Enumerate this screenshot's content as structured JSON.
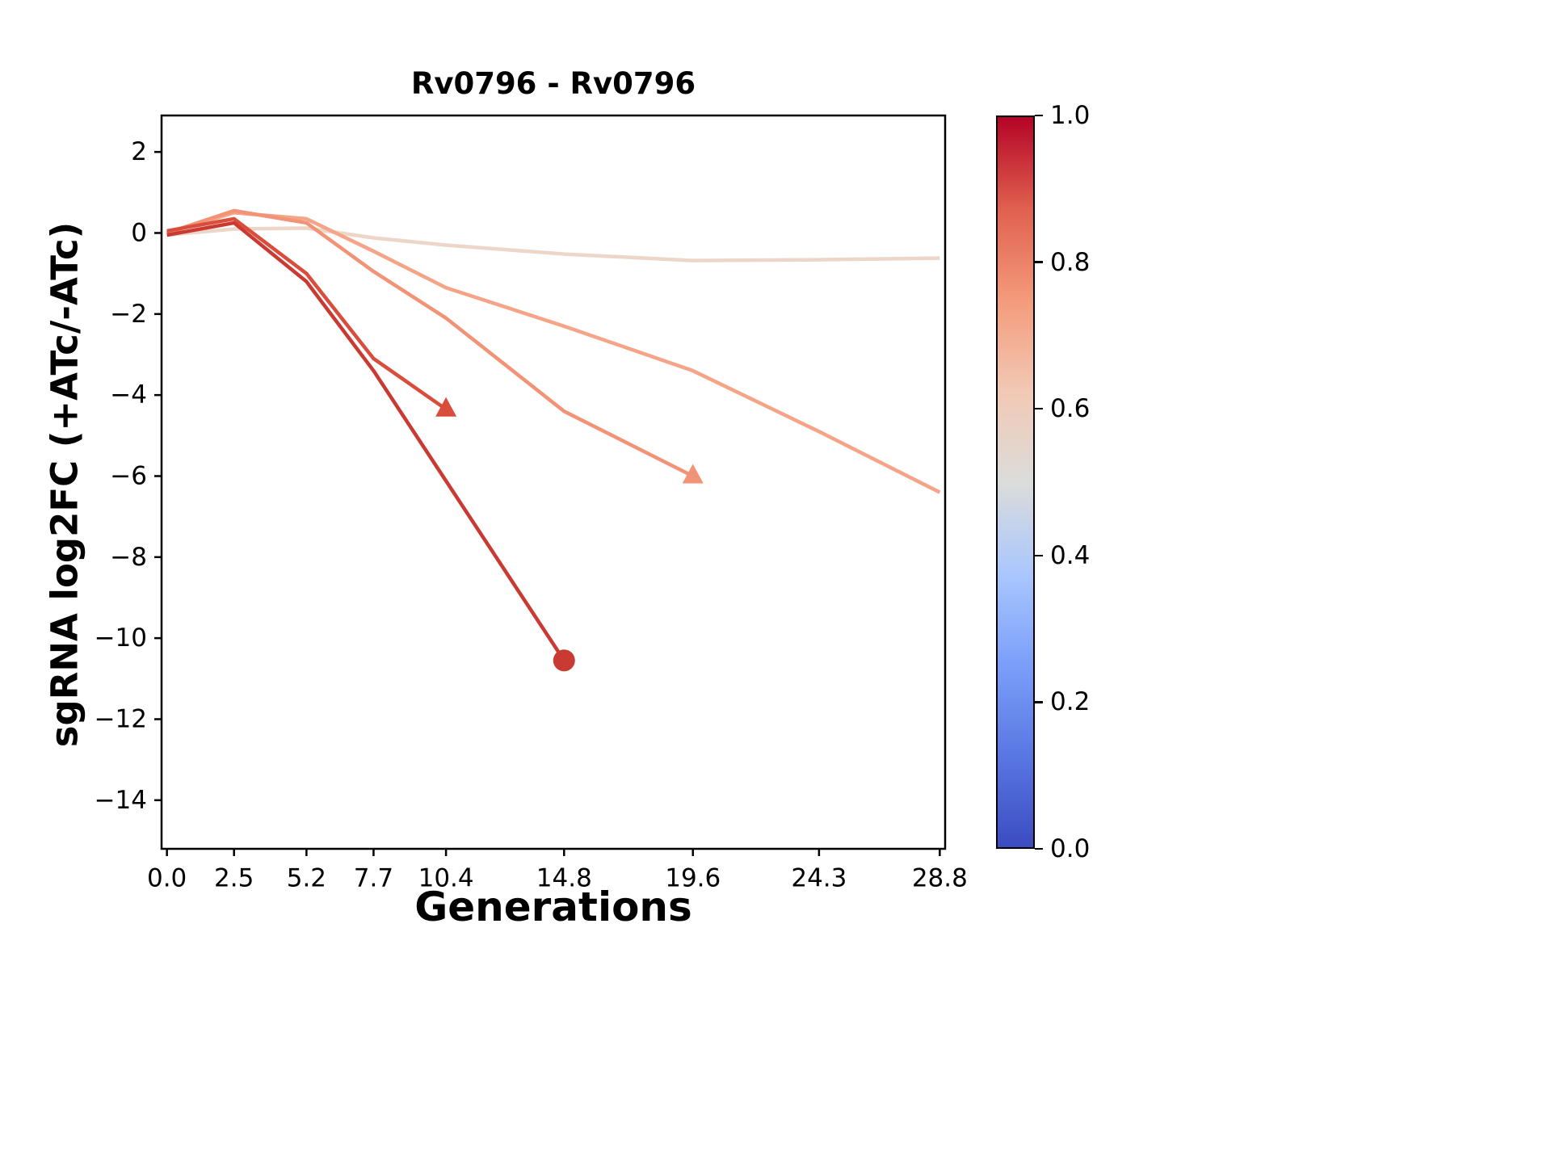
{
  "chart_data": {
    "type": "line",
    "title": "Rv0796 - Rv0796",
    "xlabel": "Generations",
    "ylabel": "sgRNA log2FC (+ATc/-ATc)",
    "xlim": [
      -0.2,
      29.0
    ],
    "ylim": [
      -15.2,
      2.9
    ],
    "grid": false,
    "xticks": [
      0.0,
      2.5,
      5.2,
      7.7,
      10.4,
      14.8,
      19.6,
      24.3,
      28.8
    ],
    "xtick_labels": [
      "0.0",
      "2.5",
      "5.2",
      "7.7",
      "10.4",
      "14.8",
      "19.6",
      "24.3",
      "28.8"
    ],
    "yticks": [
      2,
      0,
      -2,
      -4,
      -6,
      -8,
      -10,
      -12,
      -14
    ],
    "ytick_labels": [
      "2",
      "0",
      "−2",
      "−4",
      "−6",
      "−8",
      "−10",
      "−12",
      "−14"
    ],
    "series": [
      {
        "id": "line-1",
        "colormap_value": 0.57,
        "color": "#ebd6c8",
        "marker": "none",
        "points": [
          [
            0,
            -0.05
          ],
          [
            2.5,
            0.1
          ],
          [
            5.2,
            0.12
          ],
          [
            7.7,
            -0.12
          ],
          [
            10.4,
            -0.3
          ],
          [
            14.8,
            -0.52
          ],
          [
            19.6,
            -0.68
          ],
          [
            24.3,
            -0.66
          ],
          [
            28.8,
            -0.62
          ]
        ]
      },
      {
        "id": "line-2",
        "colormap_value": 0.72,
        "color": "#f5a487",
        "marker": "none",
        "points": [
          [
            0,
            0.0
          ],
          [
            2.5,
            0.5
          ],
          [
            5.2,
            0.35
          ],
          [
            7.7,
            -0.45
          ],
          [
            10.4,
            -1.35
          ],
          [
            14.8,
            -2.3
          ],
          [
            19.6,
            -3.4
          ],
          [
            24.3,
            -4.9
          ],
          [
            28.8,
            -6.4
          ]
        ]
      },
      {
        "id": "line-3",
        "colormap_value": 0.78,
        "color": "#f29378",
        "marker": "triangle",
        "points": [
          [
            0,
            0.0
          ],
          [
            2.5,
            0.55
          ],
          [
            5.2,
            0.25
          ],
          [
            7.7,
            -0.95
          ],
          [
            10.4,
            -2.1
          ],
          [
            14.8,
            -4.4
          ],
          [
            19.6,
            -6.0
          ]
        ]
      },
      {
        "id": "line-4",
        "colormap_value": 0.88,
        "color": "#d84d3b",
        "marker": "triangle",
        "points": [
          [
            0,
            0.05
          ],
          [
            2.5,
            0.35
          ],
          [
            5.2,
            -1.0
          ],
          [
            7.7,
            -3.1
          ],
          [
            10.4,
            -4.35
          ]
        ]
      },
      {
        "id": "line-5",
        "colormap_value": 0.93,
        "color": "#c93a33",
        "marker": "circle",
        "points": [
          [
            0,
            -0.05
          ],
          [
            2.5,
            0.25
          ],
          [
            5.2,
            -1.2
          ],
          [
            7.7,
            -3.4
          ],
          [
            14.8,
            -10.55
          ]
        ]
      }
    ],
    "colorbar": {
      "colormap": "coolwarm",
      "tick_values": [
        0.0,
        0.2,
        0.4,
        0.6,
        0.8,
        1.0
      ],
      "tick_labels": [
        "0.0",
        "0.2",
        "0.4",
        "0.6",
        "0.8",
        "1.0"
      ],
      "stops": [
        [
          0,
          "#3b4cc0"
        ],
        [
          0.125,
          "#5977e3"
        ],
        [
          0.25,
          "#7b9ff9"
        ],
        [
          0.375,
          "#aac7fd"
        ],
        [
          0.5,
          "#dcdcdb"
        ],
        [
          0.625,
          "#f2c9b4"
        ],
        [
          0.75,
          "#f49a7b"
        ],
        [
          0.875,
          "#e0604e"
        ],
        [
          1,
          "#b40426"
        ]
      ]
    }
  }
}
